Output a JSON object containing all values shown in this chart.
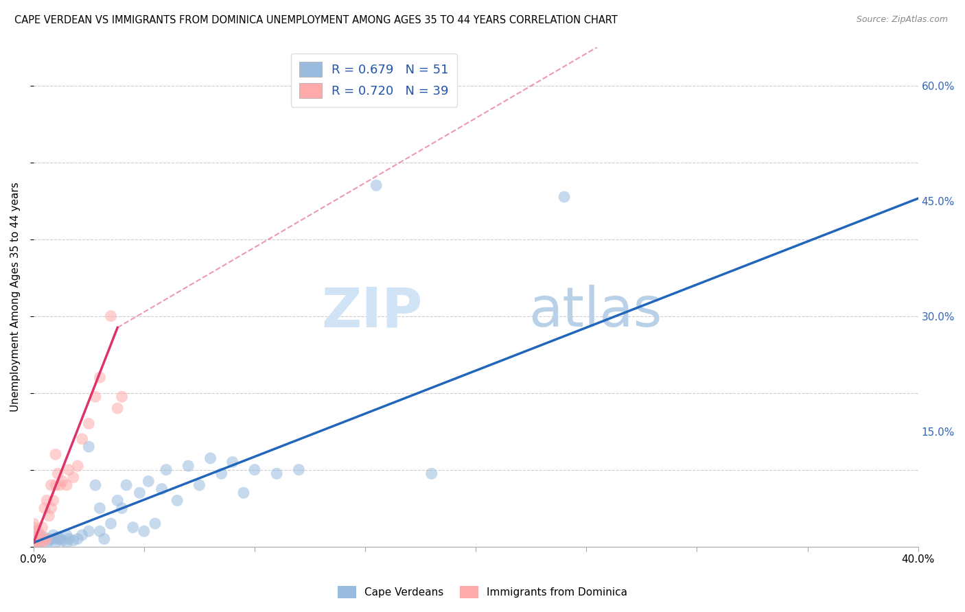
{
  "title": "CAPE VERDEAN VS IMMIGRANTS FROM DOMINICA UNEMPLOYMENT AMONG AGES 35 TO 44 YEARS CORRELATION CHART",
  "source": "Source: ZipAtlas.com",
  "ylabel": "Unemployment Among Ages 35 to 44 years",
  "xlim": [
    0.0,
    0.4
  ],
  "ylim": [
    0.0,
    0.65
  ],
  "xticks": [
    0.0,
    0.05,
    0.1,
    0.15,
    0.2,
    0.25,
    0.3,
    0.35,
    0.4
  ],
  "yticks": [
    0.0,
    0.15,
    0.3,
    0.45,
    0.6
  ],
  "ytick_labels_right": [
    "",
    "15.0%",
    "30.0%",
    "45.0%",
    "60.0%"
  ],
  "color_blue": "#99BBDD",
  "color_pink": "#FFAAAA",
  "color_line_blue": "#2266BB",
  "color_line_pink": "#DD3366",
  "watermark_zip": "ZIP",
  "watermark_atlas": "atlas",
  "legend_entries": [
    {
      "label": "R = 0.679   N = 51",
      "color": "#99BBDD"
    },
    {
      "label": "R = 0.720   N = 39",
      "color": "#FFAAAA"
    }
  ],
  "bottom_legend": [
    "Cape Verdeans",
    "Immigrants from Dominica"
  ],
  "blue_line": {
    "x0": 0.0,
    "y0": 0.005,
    "x1": 0.4,
    "y1": 0.453
  },
  "pink_line_solid": {
    "x0": 0.0,
    "y0": 0.005,
    "x1": 0.038,
    "y1": 0.285
  },
  "pink_line_dash": {
    "x0": 0.038,
    "y0": 0.285,
    "x1": 0.255,
    "y1": 0.65
  },
  "cv_x": [
    0.0,
    0.0,
    0.002,
    0.003,
    0.004,
    0.005,
    0.006,
    0.007,
    0.008,
    0.009,
    0.01,
    0.01,
    0.011,
    0.012,
    0.013,
    0.015,
    0.015,
    0.016,
    0.018,
    0.02,
    0.022,
    0.025,
    0.025,
    0.028,
    0.03,
    0.03,
    0.032,
    0.035,
    0.038,
    0.04,
    0.042,
    0.045,
    0.048,
    0.05,
    0.052,
    0.055,
    0.058,
    0.06,
    0.065,
    0.07,
    0.075,
    0.08,
    0.085,
    0.09,
    0.095,
    0.1,
    0.11,
    0.12,
    0.155,
    0.18,
    0.24
  ],
  "cv_y": [
    0.005,
    0.01,
    0.005,
    0.008,
    0.01,
    0.012,
    0.005,
    0.008,
    0.01,
    0.015,
    0.005,
    0.01,
    0.012,
    0.01,
    0.008,
    0.005,
    0.015,
    0.01,
    0.008,
    0.01,
    0.015,
    0.02,
    0.13,
    0.08,
    0.02,
    0.05,
    0.01,
    0.03,
    0.06,
    0.05,
    0.08,
    0.025,
    0.07,
    0.02,
    0.085,
    0.03,
    0.075,
    0.1,
    0.06,
    0.105,
    0.08,
    0.115,
    0.095,
    0.11,
    0.07,
    0.1,
    0.095,
    0.1,
    0.47,
    0.095,
    0.455
  ],
  "dom_x": [
    0.0,
    0.0,
    0.0,
    0.0,
    0.0,
    0.0,
    0.0,
    0.0,
    0.001,
    0.001,
    0.002,
    0.002,
    0.003,
    0.003,
    0.004,
    0.005,
    0.005,
    0.006,
    0.006,
    0.007,
    0.008,
    0.008,
    0.009,
    0.01,
    0.01,
    0.011,
    0.012,
    0.013,
    0.015,
    0.016,
    0.018,
    0.02,
    0.022,
    0.025,
    0.028,
    0.03,
    0.035,
    0.038,
    0.04
  ],
  "dom_y": [
    0.002,
    0.005,
    0.008,
    0.01,
    0.015,
    0.02,
    0.025,
    0.03,
    0.005,
    0.012,
    0.008,
    0.02,
    0.005,
    0.015,
    0.025,
    0.008,
    0.05,
    0.01,
    0.06,
    0.04,
    0.05,
    0.08,
    0.06,
    0.08,
    0.12,
    0.095,
    0.08,
    0.085,
    0.08,
    0.1,
    0.09,
    0.105,
    0.14,
    0.16,
    0.195,
    0.22,
    0.3,
    0.18,
    0.195
  ]
}
